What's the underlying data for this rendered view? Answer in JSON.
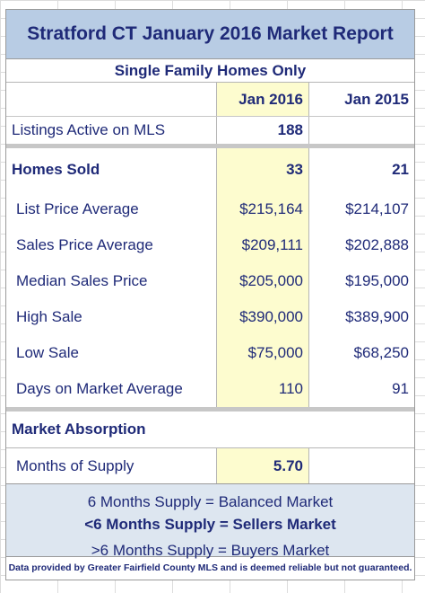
{
  "title": "Stratford CT January 2016 Market Report",
  "subtitle": "Single Family Homes Only",
  "columns": {
    "current": "Jan 2016",
    "previous": "Jan 2015"
  },
  "listings": {
    "label": "Listings Active on MLS",
    "current": "188",
    "previous": ""
  },
  "sold": {
    "label": "Homes Sold",
    "current": "33",
    "previous": "21"
  },
  "metrics": [
    {
      "label": "List Price Average",
      "current": "$215,164",
      "previous": "$214,107"
    },
    {
      "label": "Sales Price Average",
      "current": "$209,111",
      "previous": "$202,888"
    },
    {
      "label": "Median Sales Price",
      "current": "$205,000",
      "previous": "$195,000"
    },
    {
      "label": "High Sale",
      "current": "$390,000",
      "previous": "$389,900"
    },
    {
      "label": "Low Sale",
      "current": "$75,000",
      "previous": "$68,250"
    },
    {
      "label": "Days on Market Average",
      "current": "110",
      "previous": "91"
    }
  ],
  "absorption": {
    "heading": "Market Absorption",
    "label": "Months of Supply",
    "current": "5.70"
  },
  "legend": {
    "balanced": "6 Months Supply = Balanced Market",
    "sellers": "<6 Months Supply = Sellers Market",
    "buyers": ">6 Months Supply = Buyers Market"
  },
  "footer": "Data provided by Greater Fairfield County MLS and is deemed reliable but not guaranteed.",
  "colors": {
    "header_bg": "#b8cce4",
    "highlight": "#fdfccf",
    "text": "#1f2a78",
    "note_bg": "#dde6f0"
  }
}
